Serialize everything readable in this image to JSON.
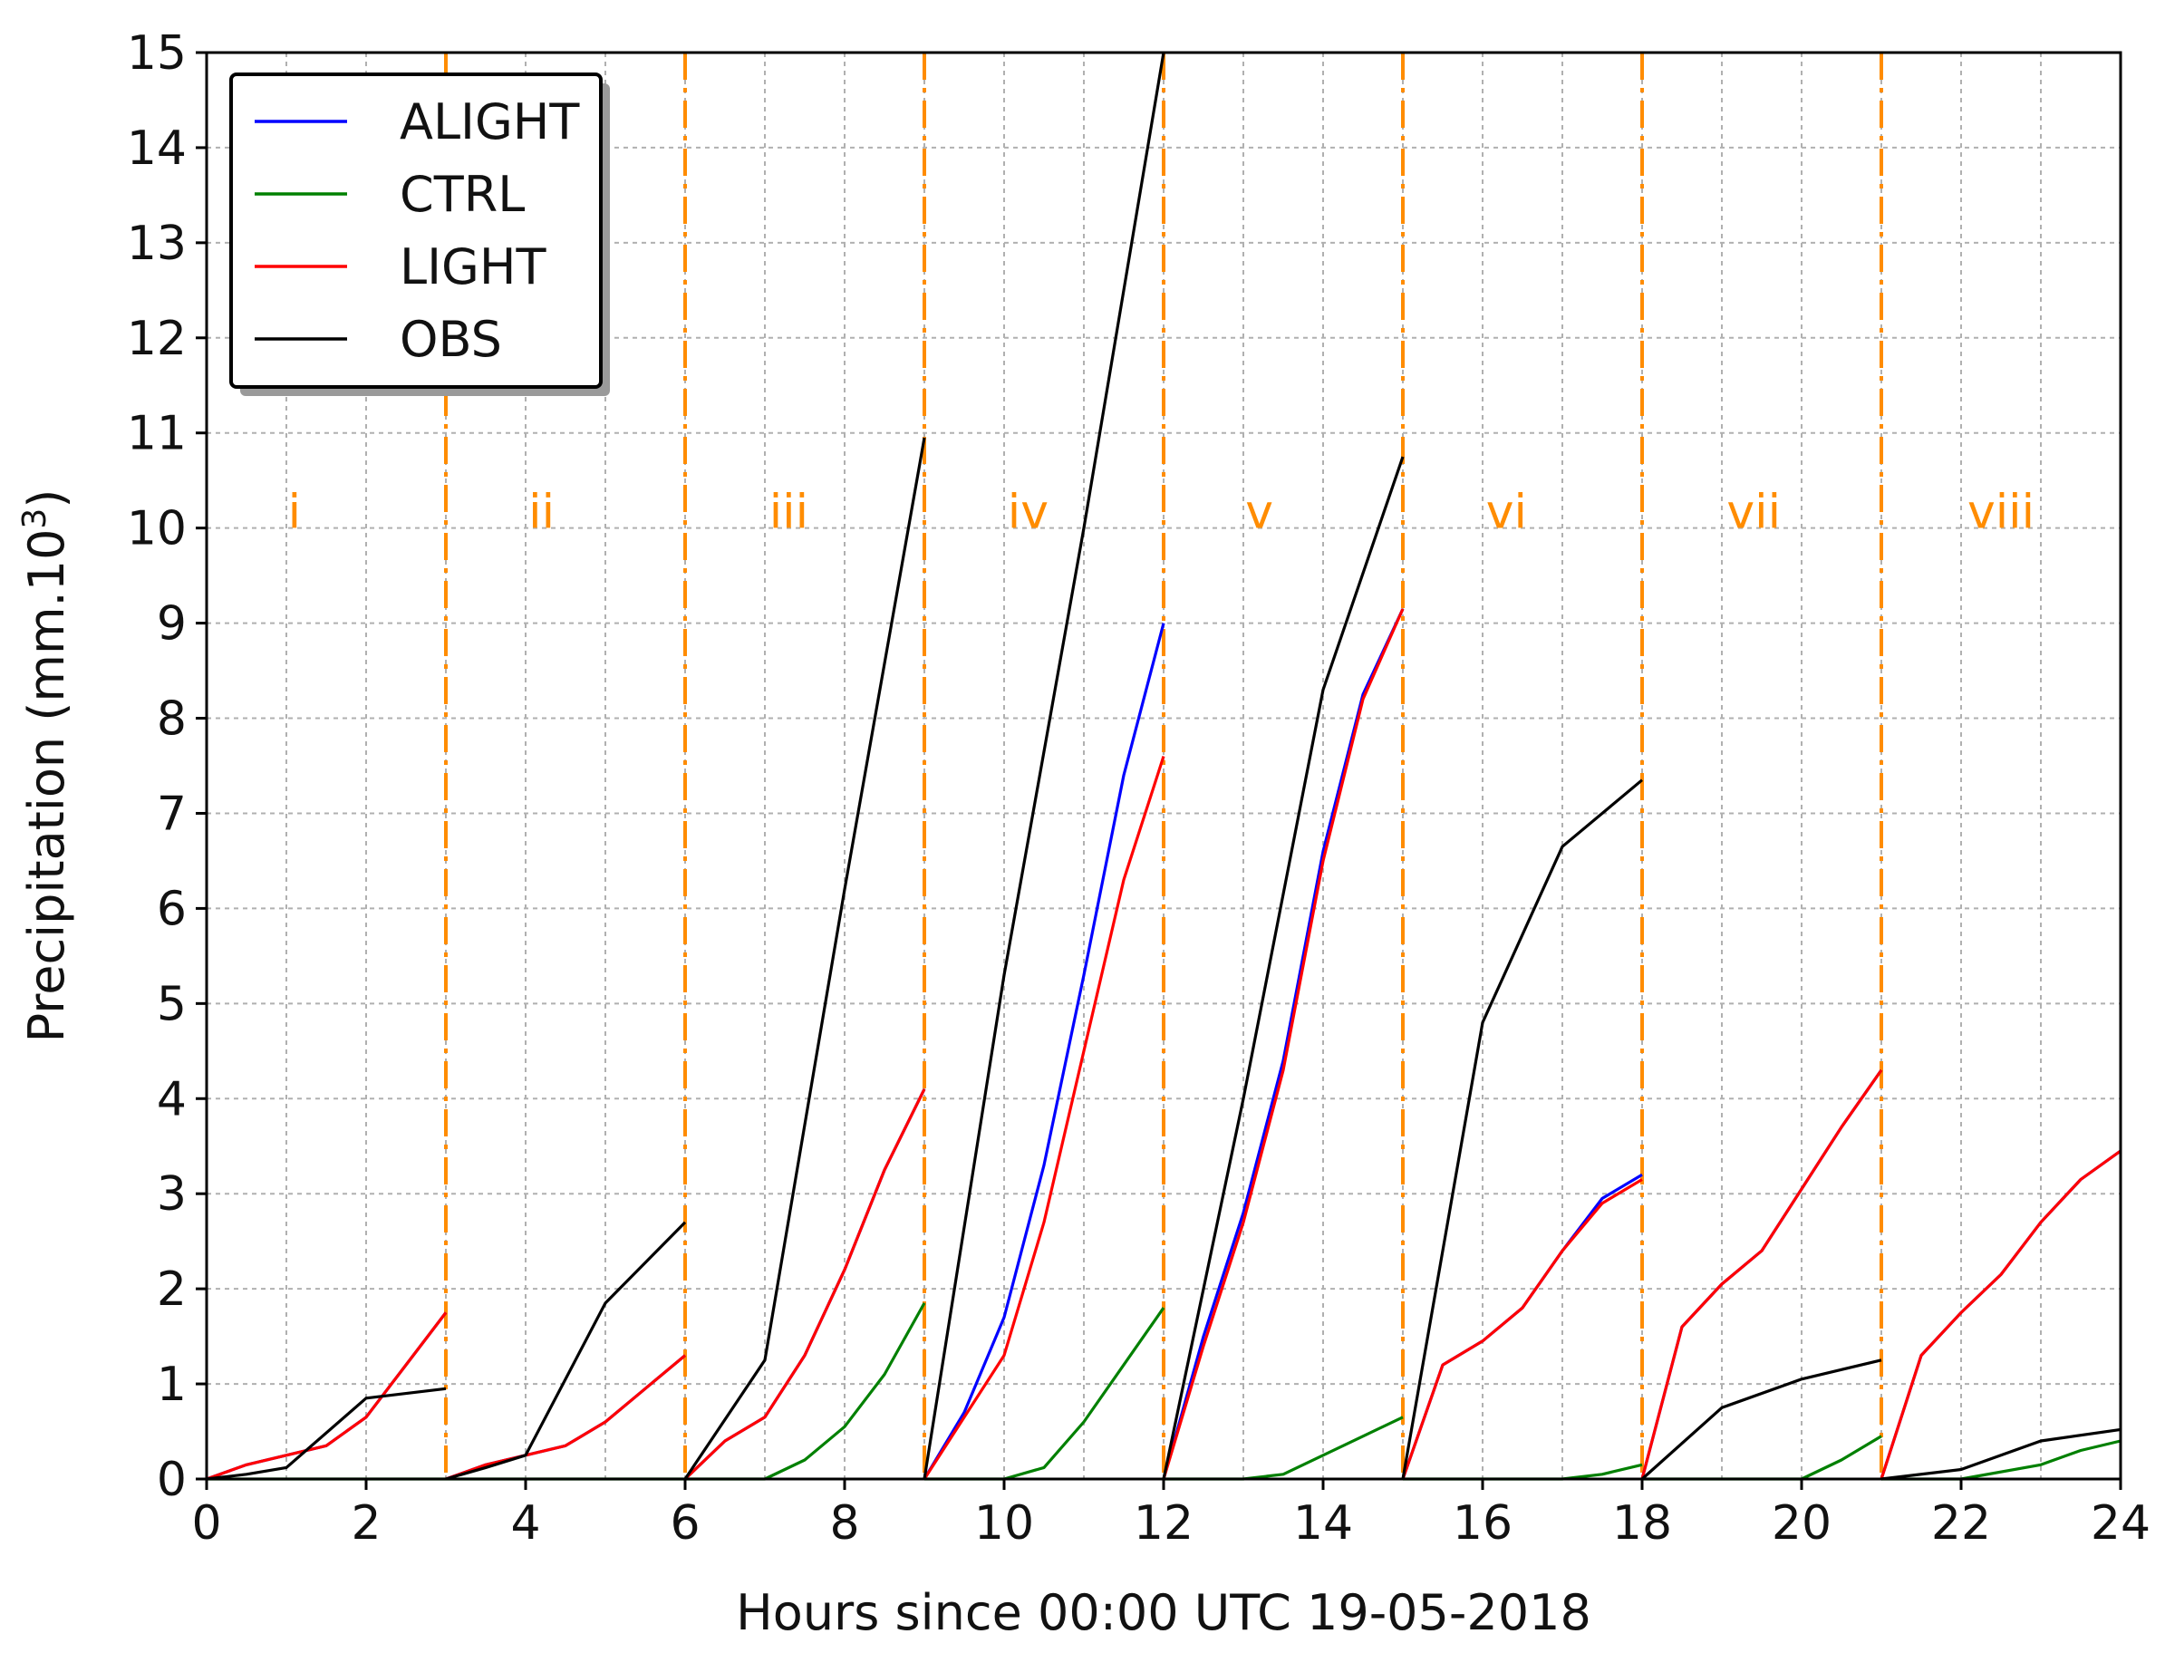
{
  "chart_data": {
    "type": "line",
    "title": "",
    "xlabel": "Hours since 00:00 UTC 19-05-2018",
    "ylabel": "Precipitation (mm.10",
    "ylabel_superscript": "3",
    "ylabel_suffix": ")",
    "xlim": [
      0,
      24
    ],
    "ylim": [
      0,
      15
    ],
    "xticks": [
      0,
      2,
      4,
      6,
      8,
      10,
      12,
      14,
      16,
      18,
      20,
      22,
      24
    ],
    "xtick_labels": [
      "0",
      "2",
      "4",
      "6",
      "8",
      "10",
      "12",
      "14",
      "16",
      "18",
      "20",
      "22",
      "24"
    ],
    "yticks": [
      0,
      1,
      2,
      3,
      4,
      5,
      6,
      7,
      8,
      9,
      10,
      11,
      12,
      13,
      14,
      15
    ],
    "ytick_labels": [
      "0",
      "1",
      "2",
      "3",
      "4",
      "5",
      "6",
      "7",
      "8",
      "9",
      "10",
      "11",
      "12",
      "13",
      "14",
      "15"
    ],
    "grid": true,
    "legend_position": "top-left",
    "period_boundaries": [
      3,
      6,
      9,
      12,
      15,
      18,
      21
    ],
    "period_boundary_color": "#ff8c00",
    "periods": [
      {
        "label": "i",
        "center": 1.1
      },
      {
        "label": "ii",
        "center": 4.2
      },
      {
        "label": "iii",
        "center": 7.3
      },
      {
        "label": "iv",
        "center": 10.3
      },
      {
        "label": "v",
        "center": 13.2
      },
      {
        "label": "vi",
        "center": 16.3
      },
      {
        "label": "vii",
        "center": 19.4
      },
      {
        "label": "viii",
        "center": 22.5
      }
    ],
    "series": [
      {
        "name": "ALIGHT",
        "color": "#0000ff",
        "segments": [
          [
            [
              0,
              0
            ],
            [
              0.5,
              0.15
            ],
            [
              1,
              0.25
            ],
            [
              1.5,
              0.35
            ],
            [
              2,
              0.65
            ],
            [
              2.5,
              1.2
            ],
            [
              3,
              1.75
            ]
          ],
          [
            [
              3,
              0
            ],
            [
              3.5,
              0.15
            ],
            [
              4,
              0.25
            ],
            [
              4.5,
              0.35
            ],
            [
              5,
              0.6
            ],
            [
              5.5,
              0.95
            ],
            [
              6,
              1.3
            ]
          ],
          [
            [
              6,
              0
            ],
            [
              6.5,
              0.4
            ],
            [
              7,
              0.65
            ],
            [
              7.5,
              1.3
            ],
            [
              8,
              2.2
            ],
            [
              8.5,
              3.25
            ],
            [
              9,
              4.1
            ]
          ],
          [
            [
              9,
              0
            ],
            [
              9.5,
              0.7
            ],
            [
              10,
              1.7
            ],
            [
              10.5,
              3.3
            ],
            [
              11,
              5.3
            ],
            [
              11.5,
              7.4
            ],
            [
              12,
              9.0
            ]
          ],
          [
            [
              12,
              0
            ],
            [
              12.5,
              1.5
            ],
            [
              13,
              2.8
            ],
            [
              13.5,
              4.4
            ],
            [
              14,
              6.6
            ],
            [
              14.5,
              8.25
            ],
            [
              15,
              9.15
            ]
          ],
          [
            [
              15,
              0
            ],
            [
              15.5,
              1.2
            ],
            [
              16,
              1.45
            ],
            [
              16.5,
              1.8
            ],
            [
              17,
              2.4
            ],
            [
              17.5,
              2.95
            ],
            [
              18,
              3.2
            ]
          ],
          [
            [
              18,
              0
            ],
            [
              18.5,
              1.6
            ],
            [
              19,
              2.05
            ],
            [
              19.5,
              2.4
            ],
            [
              20,
              3.05
            ],
            [
              20.5,
              3.7
            ],
            [
              21,
              4.3
            ]
          ],
          [
            [
              21,
              0
            ],
            [
              21.5,
              1.3
            ],
            [
              22,
              1.75
            ],
            [
              22.5,
              2.15
            ],
            [
              23,
              2.7
            ],
            [
              23.5,
              3.15
            ],
            [
              24,
              3.45
            ]
          ]
        ]
      },
      {
        "name": "CTRL",
        "color": "#008000",
        "segments": [
          [
            [
              0,
              0
            ],
            [
              3,
              0
            ]
          ],
          [
            [
              3,
              0
            ],
            [
              6,
              0
            ]
          ],
          [
            [
              6,
              0
            ],
            [
              7,
              0
            ],
            [
              7.5,
              0.2
            ],
            [
              8,
              0.55
            ],
            [
              8.5,
              1.1
            ],
            [
              9,
              1.85
            ]
          ],
          [
            [
              9,
              0
            ],
            [
              10,
              0
            ],
            [
              10.5,
              0.12
            ],
            [
              11,
              0.6
            ],
            [
              11.5,
              1.2
            ],
            [
              12,
              1.8
            ]
          ],
          [
            [
              12,
              0
            ],
            [
              13,
              0
            ],
            [
              13.5,
              0.05
            ],
            [
              14,
              0.25
            ],
            [
              14.5,
              0.45
            ],
            [
              15,
              0.65
            ]
          ],
          [
            [
              15,
              0
            ],
            [
              17,
              0
            ],
            [
              17.5,
              0.05
            ],
            [
              18,
              0.15
            ]
          ],
          [
            [
              18,
              0
            ],
            [
              20,
              0
            ],
            [
              20.5,
              0.2
            ],
            [
              21,
              0.45
            ]
          ],
          [
            [
              21,
              0
            ],
            [
              22,
              0
            ],
            [
              23,
              0.15
            ],
            [
              23.5,
              0.3
            ],
            [
              24,
              0.4
            ]
          ]
        ]
      },
      {
        "name": "LIGHT",
        "color": "#ff0000",
        "segments": [
          [
            [
              0,
              0
            ],
            [
              0.5,
              0.15
            ],
            [
              1,
              0.25
            ],
            [
              1.5,
              0.35
            ],
            [
              2,
              0.65
            ],
            [
              2.5,
              1.2
            ],
            [
              3,
              1.75
            ]
          ],
          [
            [
              3,
              0
            ],
            [
              3.5,
              0.15
            ],
            [
              4,
              0.25
            ],
            [
              4.5,
              0.35
            ],
            [
              5,
              0.6
            ],
            [
              5.5,
              0.95
            ],
            [
              6,
              1.3
            ]
          ],
          [
            [
              6,
              0
            ],
            [
              6.5,
              0.4
            ],
            [
              7,
              0.65
            ],
            [
              7.5,
              1.3
            ],
            [
              8,
              2.2
            ],
            [
              8.5,
              3.25
            ],
            [
              9,
              4.1
            ]
          ],
          [
            [
              9,
              0
            ],
            [
              9.5,
              0.65
            ],
            [
              10,
              1.3
            ],
            [
              10.5,
              2.7
            ],
            [
              11,
              4.5
            ],
            [
              11.5,
              6.3
            ],
            [
              12,
              7.6
            ]
          ],
          [
            [
              12,
              0
            ],
            [
              12.5,
              1.4
            ],
            [
              13,
              2.7
            ],
            [
              13.5,
              4.3
            ],
            [
              14,
              6.5
            ],
            [
              14.5,
              8.2
            ],
            [
              15,
              9.15
            ]
          ],
          [
            [
              15,
              0
            ],
            [
              15.5,
              1.2
            ],
            [
              16,
              1.45
            ],
            [
              16.5,
              1.8
            ],
            [
              17,
              2.4
            ],
            [
              17.5,
              2.9
            ],
            [
              18,
              3.15
            ]
          ],
          [
            [
              18,
              0
            ],
            [
              18.5,
              1.6
            ],
            [
              19,
              2.05
            ],
            [
              19.5,
              2.4
            ],
            [
              20,
              3.05
            ],
            [
              20.5,
              3.7
            ],
            [
              21,
              4.3
            ]
          ],
          [
            [
              21,
              0
            ],
            [
              21.5,
              1.3
            ],
            [
              22,
              1.75
            ],
            [
              22.5,
              2.15
            ],
            [
              23,
              2.7
            ],
            [
              23.5,
              3.15
            ],
            [
              24,
              3.45
            ]
          ]
        ]
      },
      {
        "name": "OBS",
        "color": "#000000",
        "segments": [
          [
            [
              0,
              0
            ],
            [
              0.5,
              0.05
            ],
            [
              1,
              0.12
            ],
            [
              2,
              0.85
            ],
            [
              3,
              0.95
            ]
          ],
          [
            [
              3,
              0
            ],
            [
              3.5,
              0.12
            ],
            [
              4,
              0.25
            ],
            [
              5,
              1.85
            ],
            [
              6,
              2.7
            ]
          ],
          [
            [
              6,
              0
            ],
            [
              7,
              1.25
            ],
            [
              8,
              6.2
            ],
            [
              9,
              10.95
            ]
          ],
          [
            [
              9,
              0
            ],
            [
              10,
              5.3
            ],
            [
              11,
              10.0
            ],
            [
              12,
              15.0
            ]
          ],
          [
            [
              12,
              0
            ],
            [
              13,
              4.0
            ],
            [
              14,
              8.3
            ],
            [
              15,
              10.75
            ]
          ],
          [
            [
              15,
              0
            ],
            [
              16,
              4.8
            ],
            [
              17,
              6.65
            ],
            [
              18,
              7.35
            ]
          ],
          [
            [
              18,
              0
            ],
            [
              19,
              0.75
            ],
            [
              20,
              1.05
            ],
            [
              20.5,
              1.15
            ],
            [
              21,
              1.25
            ]
          ],
          [
            [
              21,
              0
            ],
            [
              22,
              0.1
            ],
            [
              23,
              0.4
            ],
            [
              24,
              0.52
            ]
          ]
        ]
      }
    ]
  }
}
